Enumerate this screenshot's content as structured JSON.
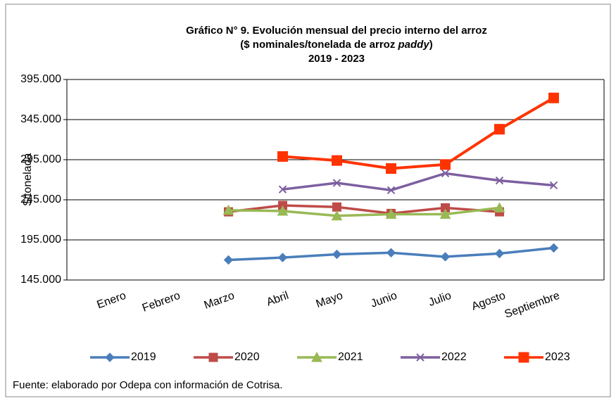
{
  "chart_data": {
    "type": "line",
    "title": "Gráfico N° 9. Evolución mensual del precio interno del arroz",
    "subtitle": [
      "($ nominales/tonelada de arroz ",
      "paddy",
      ")"
    ],
    "period": "2019 - 2023",
    "y_label": "$/tonelada",
    "source": "Fuente: elaborado por Odepa con información de Cotrisa.",
    "categories": [
      "Enero",
      "Febrero",
      "Marzo",
      "Abril",
      "Mayo",
      "Junio",
      "Julio",
      "Agosto",
      "Septiembre"
    ],
    "ylim": [
      145000,
      395000
    ],
    "yticks": [
      {
        "value": 145000,
        "label": "145.000"
      },
      {
        "value": 195000,
        "label": "195.000"
      },
      {
        "value": 245000,
        "label": "245.000"
      },
      {
        "value": 295000,
        "label": "295.000"
      },
      {
        "value": 345000,
        "label": "345.000"
      },
      {
        "value": 395000,
        "label": "395.000"
      }
    ],
    "grid": true,
    "series": [
      {
        "name": "2019",
        "color": "#4a7ebb",
        "marker": "diamond",
        "values": [
          null,
          null,
          170000,
          173000,
          177000,
          179000,
          174000,
          178000,
          185000
        ]
      },
      {
        "name": "2020",
        "color": "#be4b48",
        "marker": "square",
        "values": [
          null,
          null,
          230000,
          238000,
          236000,
          228000,
          235000,
          230000,
          null
        ]
      },
      {
        "name": "2021",
        "color": "#98b954",
        "marker": "triangle",
        "values": [
          null,
          null,
          232000,
          231000,
          225000,
          227000,
          227000,
          235000,
          null
        ]
      },
      {
        "name": "2022",
        "color": "#7d5fa0",
        "marker": "x",
        "values": [
          null,
          null,
          null,
          258000,
          266000,
          257000,
          278000,
          269000,
          263000
        ]
      },
      {
        "name": "2023",
        "color": "#ff3300",
        "marker": "bigsquare",
        "values": [
          null,
          null,
          null,
          299000,
          294000,
          284000,
          289000,
          333000,
          372000
        ]
      }
    ]
  }
}
